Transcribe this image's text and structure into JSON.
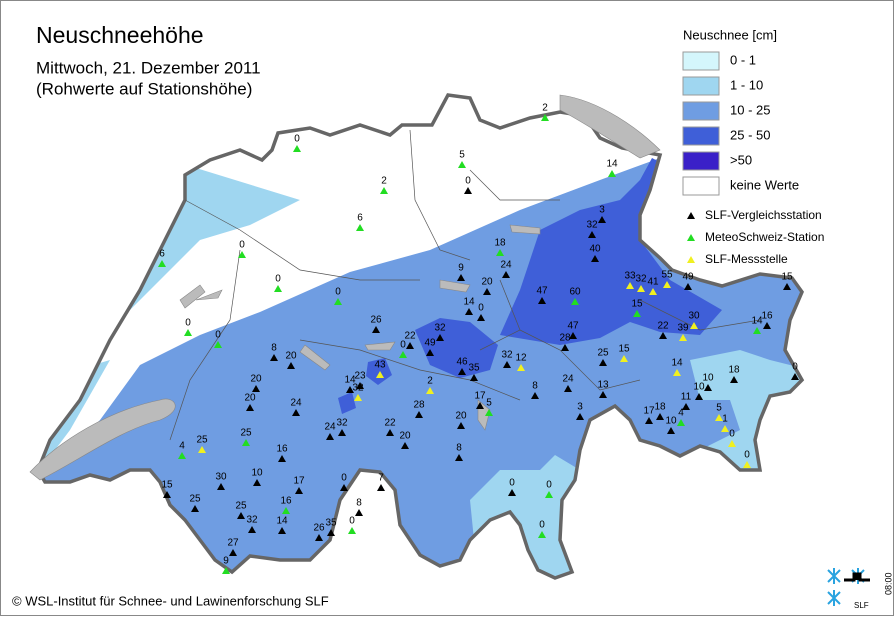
{
  "header": {
    "title": "Neuschneehöhe",
    "subtitle": "Mittwoch, 21. Dezember 2011",
    "note": "(Rohwerte auf Stationshöhe)"
  },
  "legend": {
    "title": "Neuschnee [cm]",
    "items": [
      {
        "label": "0 - 1",
        "color": "#d4f6fc"
      },
      {
        "label": "1 - 10",
        "color": "#9fd6f0"
      },
      {
        "label": "10 - 25",
        "color": "#6f9de2"
      },
      {
        "label": "25 - 50",
        "color": "#3f5fd8"
      },
      {
        "label": ">50",
        "color": "#3a20c8"
      },
      {
        "label": "keine Werte",
        "color": "#ffffff"
      }
    ],
    "stations": [
      {
        "label": "SLF-Vergleichsstation",
        "color": "#000000"
      },
      {
        "label": "MeteoSchweiz-Station",
        "color": "#22dd22"
      },
      {
        "label": "SLF-Messstelle",
        "color": "#f0f020"
      }
    ]
  },
  "stations": [
    0,
    2,
    5,
    0,
    2,
    14,
    3,
    32,
    6,
    18,
    40,
    24,
    0,
    6,
    9,
    20,
    0,
    47,
    60,
    33,
    32,
    41,
    55,
    49,
    15,
    0,
    14,
    0,
    15,
    30,
    14,
    16,
    0,
    26,
    47,
    22,
    39,
    0,
    22,
    0,
    32,
    49,
    28,
    8,
    20,
    25,
    15,
    46,
    35,
    32,
    12,
    43,
    14,
    23,
    32,
    2,
    20,
    24,
    14,
    18,
    0,
    8,
    13,
    10,
    11,
    10,
    20,
    24,
    17,
    5,
    28,
    17,
    18,
    5,
    4,
    1,
    10,
    20,
    3,
    24,
    32,
    22,
    25,
    20,
    0,
    16,
    4,
    25,
    8,
    0,
    10,
    17,
    0,
    7,
    30,
    15,
    25,
    0,
    0,
    16,
    8,
    25,
    32,
    14,
    26,
    35,
    0,
    0,
    27,
    9
  ],
  "footer": {
    "copyright": "© WSL-Institut für Schnee- und Lawinenforschung SLF",
    "time": "08:00",
    "logo": "SLF"
  }
}
